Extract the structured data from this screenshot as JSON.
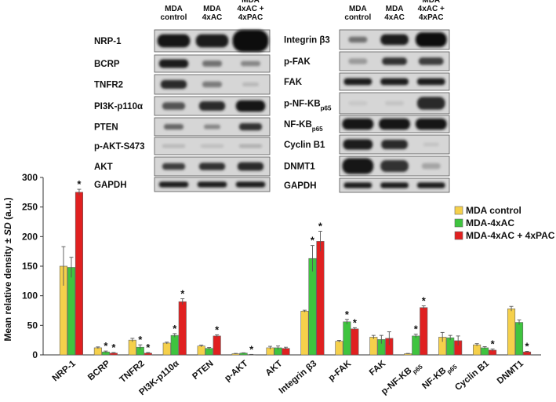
{
  "blot_panels": {
    "left": {
      "headers": [
        "MDA control",
        "MDA 4xAC",
        "MDA 4xAC + 4xPAC"
      ],
      "header_lines": [
        [
          "MDA",
          "control"
        ],
        [
          "MDA",
          "4xAC"
        ],
        [
          "MDA",
          "4xAC +",
          "4xPAC"
        ]
      ],
      "rows": [
        "NRP-1",
        "BCRP",
        "TNFR2",
        "PI3K-p110α",
        "PTEN",
        "p-AKT-S473",
        "AKT",
        "GAPDH"
      ]
    },
    "right": {
      "headers": [
        "MDA control",
        "MDA 4xAC",
        "MDA 4xAC + 4xPAC"
      ],
      "header_lines": [
        [
          "MDA",
          "control"
        ],
        [
          "MDA",
          "4xAC"
        ],
        [
          "MDA",
          "4xAC +",
          "4xPAC"
        ]
      ],
      "rows": [
        {
          "main": "Integrin β3",
          "sub": ""
        },
        {
          "main": "p-FAK",
          "sub": ""
        },
        {
          "main": "FAK",
          "sub": ""
        },
        {
          "main": "p-NF-ΚB",
          "sub": "p65"
        },
        {
          "main": "NF-ΚB",
          "sub": "p65"
        },
        {
          "main": "Cyclin B1",
          "sub": ""
        },
        {
          "main": "DNMT1",
          "sub": ""
        },
        {
          "main": "GAPDH",
          "sub": ""
        }
      ]
    }
  },
  "chart_data": {
    "type": "bar",
    "ylabel_prefix": "Mean relative density ± ",
    "ylabel_sd": "SD",
    "ylabel_suffix": " (a.u.)",
    "ylim": [
      0,
      300
    ],
    "yticks": [
      0,
      50,
      100,
      150,
      200,
      250,
      300
    ],
    "grid": false,
    "legend_position": "right",
    "categories": [
      "NRP-1",
      "BCRP",
      "TNFR2",
      "PI3K-p110α",
      "PTEN",
      "p-AKT",
      "AKT",
      "Integrin β3",
      "p-FAK",
      "FAK",
      "p-NF-ΚBp65",
      "NF-ΚBp65",
      "Cyclin B1",
      "DNMT1"
    ],
    "category_labels": [
      {
        "main": "NRP-1",
        "sub": ""
      },
      {
        "main": "BCRP",
        "sub": ""
      },
      {
        "main": "TNFR2",
        "sub": ""
      },
      {
        "main": "PI3K-p110α",
        "sub": ""
      },
      {
        "main": "PTEN",
        "sub": ""
      },
      {
        "main": "p-AKT",
        "sub": ""
      },
      {
        "main": "AKT",
        "sub": ""
      },
      {
        "main": "Integrin β3",
        "sub": ""
      },
      {
        "main": "p-FAK",
        "sub": ""
      },
      {
        "main": "FAK",
        "sub": ""
      },
      {
        "main": "p-NF-ΚB",
        "sub": "p65"
      },
      {
        "main": "NF-ΚB",
        "sub": "p65"
      },
      {
        "main": "Cyclin B1",
        "sub": ""
      },
      {
        "main": "DNMT1",
        "sub": ""
      }
    ],
    "series": [
      {
        "name": "MDA control",
        "color": "#F5D04B",
        "values": [
          150,
          12,
          25,
          20,
          15,
          2,
          12,
          74,
          23,
          30,
          2,
          30,
          17,
          78
        ],
        "errors": [
          33,
          1.5,
          3,
          1.5,
          1.5,
          0.5,
          2.5,
          1.5,
          1.5,
          3,
          0.5,
          8,
          2,
          4
        ],
        "significant": [
          false,
          false,
          false,
          false,
          false,
          false,
          false,
          false,
          false,
          false,
          false,
          false,
          false,
          false
        ]
      },
      {
        "name": "MDA-4xAC",
        "color": "#3FC43F",
        "values": [
          148,
          5,
          13,
          33,
          11,
          3,
          12,
          163,
          56,
          26,
          32,
          29,
          12,
          55
        ],
        "errors": [
          17,
          1.5,
          4,
          3,
          1.5,
          0.5,
          3,
          22,
          4,
          7,
          3,
          4,
          2,
          4
        ],
        "significant": [
          false,
          true,
          true,
          true,
          false,
          false,
          false,
          true,
          true,
          false,
          true,
          false,
          false,
          false
        ]
      },
      {
        "name": "MDA-4xAC + 4xPAC",
        "color": "#E02020",
        "values": [
          275,
          3,
          3,
          90,
          32,
          0.5,
          11,
          192,
          44,
          28,
          80,
          24,
          8,
          5
        ],
        "errors": [
          5,
          1,
          1,
          5,
          2,
          0.3,
          2,
          17,
          2,
          11,
          3,
          8,
          2,
          1
        ],
        "significant": [
          true,
          true,
          true,
          true,
          true,
          true,
          false,
          true,
          true,
          false,
          true,
          false,
          true,
          true
        ]
      }
    ],
    "significance_marker": "*"
  }
}
